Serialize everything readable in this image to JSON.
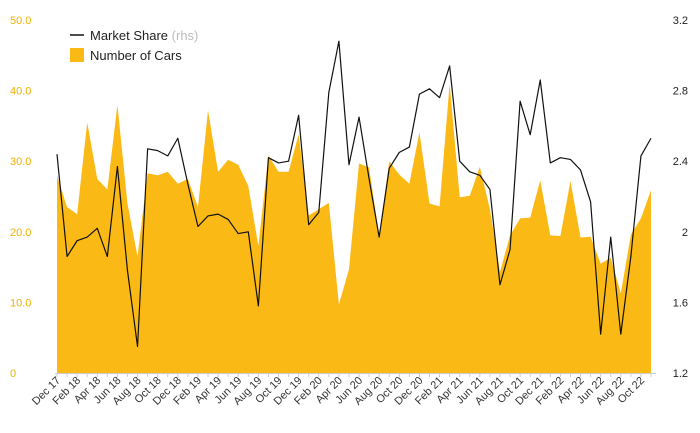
{
  "chart_data": {
    "type": "area",
    "x": [
      "Dec 17",
      "Jan 18",
      "Feb 18",
      "Mar 18",
      "Apr 18",
      "May 18",
      "Jun 18",
      "Jul 18",
      "Aug 18",
      "Sep 18",
      "Oct 18",
      "Nov 18",
      "Dec 18",
      "Jan 19",
      "Feb 19",
      "Mar 19",
      "Apr 19",
      "May 19",
      "Jun 19",
      "Jul 19",
      "Aug 19",
      "Sep 19",
      "Oct 19",
      "Nov 19",
      "Dec 19",
      "Jan 20",
      "Feb 20",
      "Mar 20",
      "Apr 20",
      "May 20",
      "Jun 20",
      "Jul 20",
      "Aug 20",
      "Sep 20",
      "Oct 20",
      "Nov 20",
      "Dec 20",
      "Jan 21",
      "Feb 21",
      "Mar 21",
      "Apr 21",
      "May 21",
      "Jun 21",
      "Jul 21",
      "Aug 21",
      "Sep 21",
      "Oct 21",
      "Nov 21",
      "Dec 21",
      "Jan 22",
      "Feb 22",
      "Mar 22",
      "Apr 22",
      "May 22",
      "Jun 22",
      "Jul 22",
      "Aug 22",
      "Sep 22",
      "Oct 22",
      "Nov 22"
    ],
    "xtick_labels": [
      "Dec 17",
      "Feb 18",
      "Apr 18",
      "Jun 18",
      "Aug 18",
      "Oct 18",
      "Dec 18",
      "Feb 19",
      "Apr 19",
      "Jun 19",
      "Aug 19",
      "Oct 19",
      "Dec 19",
      "Feb 20",
      "Apr 20",
      "Jun 20",
      "Aug 20",
      "Oct 20",
      "Dec 20",
      "Feb 21",
      "Apr 21",
      "Jun 21",
      "Aug 21",
      "Oct 21",
      "Dec 21",
      "Feb 22",
      "Apr 22",
      "Jun 22",
      "Aug 22",
      "Oct 22"
    ],
    "series": [
      {
        "name": "Number of Cars",
        "axis": "left",
        "kind": "area",
        "color": "#fbb916",
        "values": [
          28,
          23.5,
          22.5,
          35.5,
          27.5,
          26,
          38,
          24,
          16.5,
          28.3,
          28,
          28.5,
          26.8,
          27.5,
          23.5,
          37.2,
          28.5,
          30.2,
          29.5,
          26.5,
          18,
          30.8,
          28.5,
          28.5,
          33.8,
          22.3,
          23.2,
          24.1,
          9.7,
          14.7,
          29.7,
          29.1,
          19.4,
          30,
          28.1,
          26.8,
          34.1,
          24,
          23.6,
          41,
          24.9,
          25.1,
          29.2,
          23.2,
          14.3,
          19.5,
          21.9,
          22,
          27.3,
          19.5,
          19.4,
          27.2,
          19.2,
          19.3,
          15.5,
          16.3,
          11.3,
          19.6,
          21.9,
          25.9
        ]
      },
      {
        "name": "Market Share",
        "axis": "right",
        "kind": "line",
        "color": "#111111",
        "values": [
          2.44,
          1.86,
          1.95,
          1.97,
          2.02,
          1.86,
          2.37,
          1.78,
          1.35,
          2.47,
          2.46,
          2.43,
          2.53,
          2.27,
          2.03,
          2.09,
          2.1,
          2.07,
          1.99,
          2.0,
          1.58,
          2.42,
          2.39,
          2.4,
          2.66,
          2.04,
          2.11,
          2.79,
          3.08,
          2.38,
          2.65,
          2.3,
          1.97,
          2.36,
          2.45,
          2.48,
          2.78,
          2.81,
          2.76,
          2.94,
          2.4,
          2.34,
          2.32,
          2.24,
          1.7,
          1.9,
          2.74,
          2.55,
          2.86,
          2.39,
          2.42,
          2.41,
          2.35,
          2.17,
          1.42,
          1.97,
          1.42,
          1.86,
          2.43,
          2.53
        ]
      }
    ],
    "left_axis": {
      "min": 0,
      "max": 50,
      "ticks": [
        "0",
        "10.0",
        "20.0",
        "30.0",
        "40.0",
        "50.0"
      ],
      "tick_values": [
        0,
        10,
        20,
        30,
        40,
        50
      ],
      "color": "#f0b000"
    },
    "right_axis": {
      "min": 1.2,
      "max": 3.2,
      "ticks": [
        "1.2",
        "1.6",
        "2",
        "2.4",
        "2.8",
        "3.2"
      ],
      "tick_values": [
        1.2,
        1.6,
        2.0,
        2.4,
        2.8,
        3.2
      ]
    },
    "legend": {
      "position": "top-left",
      "line_label": "Market Share",
      "line_suffix": "(rhs)",
      "area_label": "Number of Cars"
    },
    "grid": false,
    "title": ""
  }
}
